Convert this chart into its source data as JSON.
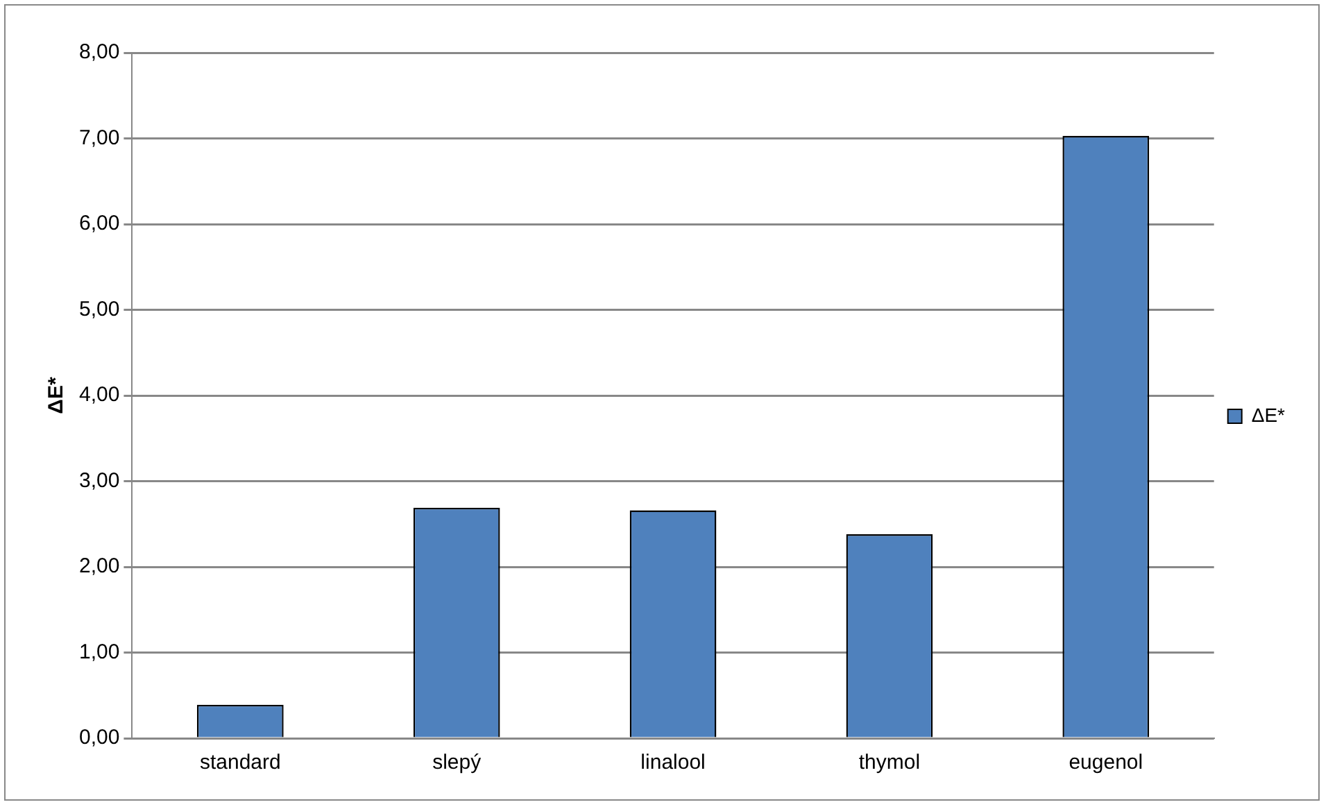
{
  "chart_data": {
    "type": "bar",
    "ylabel": "ΔE*",
    "categories": [
      "standard",
      "slepý",
      "linalool",
      "thymol",
      "eugenol"
    ],
    "series": [
      {
        "name": "ΔE*",
        "color": "#4f81bd",
        "values": [
          0.39,
          2.69,
          2.66,
          2.38,
          7.03
        ]
      }
    ],
    "ylim": [
      0,
      8
    ],
    "yticks": [
      {
        "value": 0,
        "label": "0,00"
      },
      {
        "value": 1,
        "label": "1,00"
      },
      {
        "value": 2,
        "label": "2,00"
      },
      {
        "value": 3,
        "label": "3,00"
      },
      {
        "value": 4,
        "label": "4,00"
      },
      {
        "value": 5,
        "label": "5,00"
      },
      {
        "value": 6,
        "label": "6,00"
      },
      {
        "value": 7,
        "label": "7,00"
      },
      {
        "value": 8,
        "label": "8,00"
      }
    ],
    "grid": "y",
    "legend": "right"
  }
}
